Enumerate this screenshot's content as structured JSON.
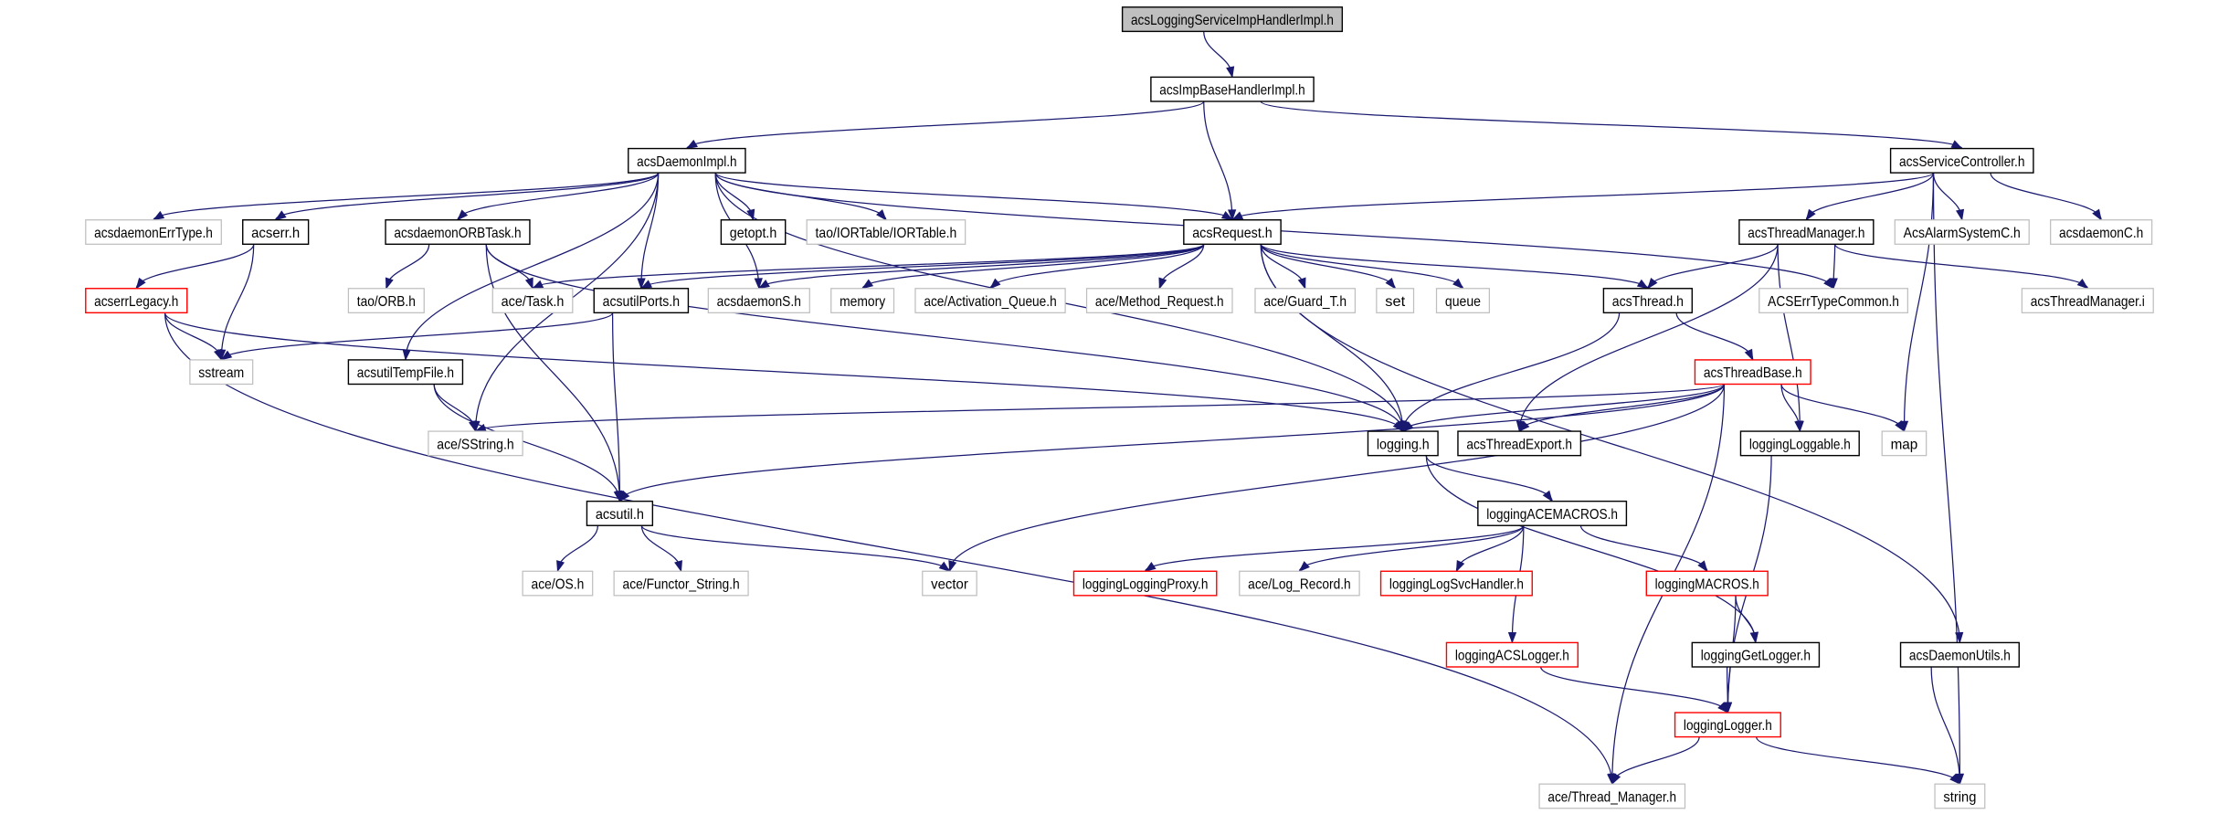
{
  "colors": {
    "edge": "#191970",
    "documented_border": "#000000",
    "external_border": "#bfbfbf",
    "truncated_border": "#ff0000",
    "root_fill": "#bfbfbf",
    "node_fill": "#ffffff"
  },
  "nodes": [
    {
      "id": "root",
      "label": "acsLoggingServiceImpHandlerImpl.h",
      "style": "root"
    },
    {
      "id": "impbase",
      "label": "acsImpBaseHandlerImpl.h",
      "style": "documented"
    },
    {
      "id": "daemonimpl",
      "label": "acsDaemonImpl.h",
      "style": "documented"
    },
    {
      "id": "servicectrl",
      "label": "acsServiceController.h",
      "style": "documented"
    },
    {
      "id": "errtype",
      "label": "acsdaemonErrType.h",
      "style": "external"
    },
    {
      "id": "acserr",
      "label": "acserr.h",
      "style": "documented"
    },
    {
      "id": "orbtask",
      "label": "acsdaemonORBTask.h",
      "style": "documented"
    },
    {
      "id": "getopt",
      "label": "getopt.h",
      "style": "documented"
    },
    {
      "id": "iortable",
      "label": "tao/IORTable/IORTable.h",
      "style": "external"
    },
    {
      "id": "request",
      "label": "acsRequest.h",
      "style": "documented"
    },
    {
      "id": "threadmgr",
      "label": "acsThreadManager.h",
      "style": "documented"
    },
    {
      "id": "alarm",
      "label": "AcsAlarmSystemC.h",
      "style": "external"
    },
    {
      "id": "daemonc",
      "label": "acsdaemonC.h",
      "style": "external"
    },
    {
      "id": "errlegacy",
      "label": "acserrLegacy.h",
      "style": "truncated"
    },
    {
      "id": "orb",
      "label": "tao/ORB.h",
      "style": "external"
    },
    {
      "id": "task",
      "label": "ace/Task.h",
      "style": "external"
    },
    {
      "id": "ports",
      "label": "acsutilPorts.h",
      "style": "documented"
    },
    {
      "id": "daemons",
      "label": "acsdaemonS.h",
      "style": "external"
    },
    {
      "id": "memory",
      "label": "memory",
      "style": "external"
    },
    {
      "id": "actq",
      "label": "ace/Activation_Queue.h",
      "style": "external"
    },
    {
      "id": "methreq",
      "label": "ace/Method_Request.h",
      "style": "external"
    },
    {
      "id": "guard",
      "label": "ace/Guard_T.h",
      "style": "external"
    },
    {
      "id": "set",
      "label": "set",
      "style": "external"
    },
    {
      "id": "queue",
      "label": "queue",
      "style": "external"
    },
    {
      "id": "thread",
      "label": "acsThread.h",
      "style": "documented"
    },
    {
      "id": "errcommon",
      "label": "ACSErrTypeCommon.h",
      "style": "external"
    },
    {
      "id": "threadmgri",
      "label": "acsThreadManager.i",
      "style": "external"
    },
    {
      "id": "sstream",
      "label": "sstream",
      "style": "external"
    },
    {
      "id": "tempfile",
      "label": "acsutilTempFile.h",
      "style": "documented"
    },
    {
      "id": "threadbase",
      "label": "acsThreadBase.h",
      "style": "truncated"
    },
    {
      "id": "sstring",
      "label": "ace/SString.h",
      "style": "external"
    },
    {
      "id": "logging",
      "label": "logging.h",
      "style": "documented"
    },
    {
      "id": "threadexport",
      "label": "acsThreadExport.h",
      "style": "documented"
    },
    {
      "id": "loggable",
      "label": "loggingLoggable.h",
      "style": "documented"
    },
    {
      "id": "map",
      "label": "map",
      "style": "external"
    },
    {
      "id": "acsutil",
      "label": "acsutil.h",
      "style": "documented"
    },
    {
      "id": "acemacros",
      "label": "loggingACEMACROS.h",
      "style": "documented"
    },
    {
      "id": "os",
      "label": "ace/OS.h",
      "style": "external"
    },
    {
      "id": "functor",
      "label": "ace/Functor_String.h",
      "style": "external"
    },
    {
      "id": "vector",
      "label": "vector",
      "style": "external"
    },
    {
      "id": "proxy",
      "label": "loggingLoggingProxy.h",
      "style": "truncated"
    },
    {
      "id": "logrecord",
      "label": "ace/Log_Record.h",
      "style": "external"
    },
    {
      "id": "svchandler",
      "label": "loggingLogSvcHandler.h",
      "style": "truncated"
    },
    {
      "id": "macros",
      "label": "loggingMACROS.h",
      "style": "truncated"
    },
    {
      "id": "acslogger",
      "label": "loggingACSLogger.h",
      "style": "truncated"
    },
    {
      "id": "getlogger",
      "label": "loggingGetLogger.h",
      "style": "documented"
    },
    {
      "id": "daemonutils",
      "label": "acsDaemonUtils.h",
      "style": "documented"
    },
    {
      "id": "logger",
      "label": "loggingLogger.h",
      "style": "truncated"
    },
    {
      "id": "threadmanager_ace",
      "label": "ace/Thread_Manager.h",
      "style": "external"
    },
    {
      "id": "string",
      "label": "string",
      "style": "external"
    }
  ],
  "edges": [
    [
      "root",
      "impbase"
    ],
    [
      "impbase",
      "daemonimpl"
    ],
    [
      "impbase",
      "request"
    ],
    [
      "impbase",
      "servicectrl"
    ],
    [
      "daemonimpl",
      "errtype"
    ],
    [
      "daemonimpl",
      "acserr"
    ],
    [
      "daemonimpl",
      "orbtask"
    ],
    [
      "daemonimpl",
      "getopt"
    ],
    [
      "daemonimpl",
      "iortable"
    ],
    [
      "daemonimpl",
      "request"
    ],
    [
      "daemonimpl",
      "ports"
    ],
    [
      "daemonimpl",
      "daemons"
    ],
    [
      "daemonimpl",
      "errcommon"
    ],
    [
      "daemonimpl",
      "sstring"
    ],
    [
      "daemonimpl",
      "tempfile"
    ],
    [
      "daemonimpl",
      "logging"
    ],
    [
      "acserr",
      "errlegacy"
    ],
    [
      "acserr",
      "sstream"
    ],
    [
      "errlegacy",
      "sstream"
    ],
    [
      "errlegacy",
      "threadmanager_ace"
    ],
    [
      "errlegacy",
      "logging"
    ],
    [
      "orbtask",
      "orb"
    ],
    [
      "orbtask",
      "task"
    ],
    [
      "orbtask",
      "logging"
    ],
    [
      "orbtask",
      "acsutil"
    ],
    [
      "ports",
      "sstream"
    ],
    [
      "ports",
      "acsutil"
    ],
    [
      "tempfile",
      "sstring"
    ],
    [
      "tempfile",
      "acsutil"
    ],
    [
      "request",
      "task"
    ],
    [
      "request",
      "ports"
    ],
    [
      "request",
      "daemons"
    ],
    [
      "request",
      "memory"
    ],
    [
      "request",
      "actq"
    ],
    [
      "request",
      "methreq"
    ],
    [
      "request",
      "guard"
    ],
    [
      "request",
      "set"
    ],
    [
      "request",
      "queue"
    ],
    [
      "request",
      "thread"
    ],
    [
      "request",
      "logging"
    ],
    [
      "request",
      "daemonutils"
    ],
    [
      "servicectrl",
      "request"
    ],
    [
      "servicectrl",
      "threadmgr"
    ],
    [
      "servicectrl",
      "alarm"
    ],
    [
      "servicectrl",
      "daemonc"
    ],
    [
      "servicectrl",
      "map"
    ],
    [
      "servicectrl",
      "string"
    ],
    [
      "threadmgr",
      "thread"
    ],
    [
      "threadmgr",
      "errcommon"
    ],
    [
      "threadmgr",
      "threadmgri"
    ],
    [
      "threadmgr",
      "threadexport"
    ],
    [
      "threadmgr",
      "loggable"
    ],
    [
      "thread",
      "threadbase"
    ],
    [
      "thread",
      "logging"
    ],
    [
      "threadbase",
      "sstring"
    ],
    [
      "threadbase",
      "logging"
    ],
    [
      "threadbase",
      "threadexport"
    ],
    [
      "threadbase",
      "loggable"
    ],
    [
      "threadbase",
      "map"
    ],
    [
      "threadbase",
      "acsutil"
    ],
    [
      "threadbase",
      "vector"
    ],
    [
      "threadbase",
      "threadmanager_ace"
    ],
    [
      "logging",
      "acemacros"
    ],
    [
      "logging",
      "getlogger"
    ],
    [
      "acemacros",
      "proxy"
    ],
    [
      "acemacros",
      "logrecord"
    ],
    [
      "acemacros",
      "svchandler"
    ],
    [
      "acemacros",
      "macros"
    ],
    [
      "acemacros",
      "acslogger"
    ],
    [
      "macros",
      "getlogger"
    ],
    [
      "macros",
      "logger"
    ],
    [
      "acslogger",
      "logger"
    ],
    [
      "getlogger",
      "logger"
    ],
    [
      "loggable",
      "logger"
    ],
    [
      "daemonutils",
      "string"
    ],
    [
      "logger",
      "threadmanager_ace"
    ],
    [
      "logger",
      "string"
    ],
    [
      "acsutil",
      "os"
    ],
    [
      "acsutil",
      "functor"
    ],
    [
      "acsutil",
      "vector"
    ]
  ]
}
